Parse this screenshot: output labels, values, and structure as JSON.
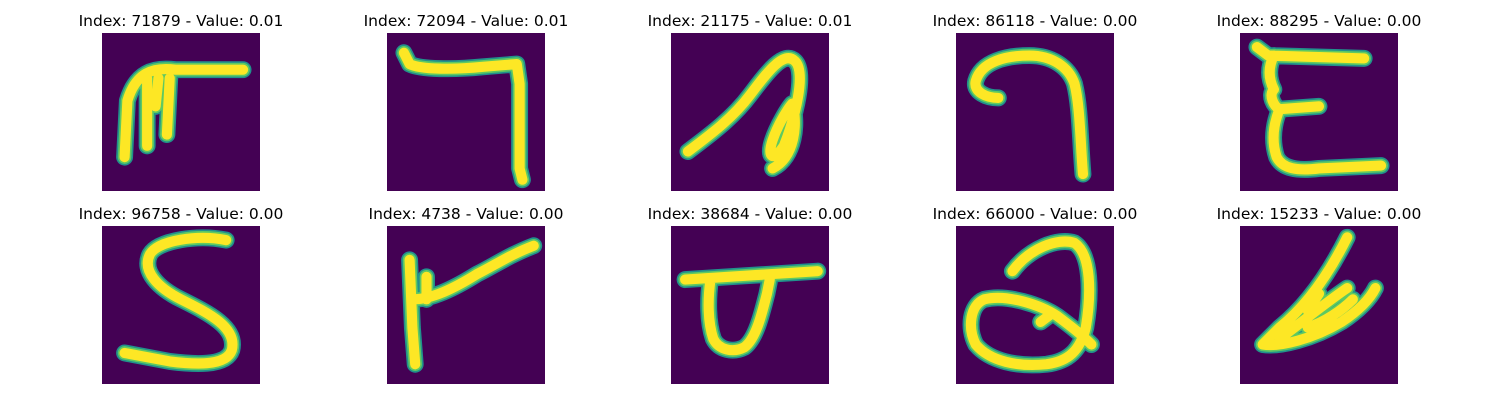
{
  "chart_data": {
    "type": "image-grid",
    "rows": 2,
    "cols": 5,
    "colors": {
      "background": "#440154",
      "stroke_edge": "#21918c",
      "stroke_mid": "#5ec962",
      "stroke_core": "#fde725"
    },
    "panels": [
      {
        "title": "Index: 71879 - Value: 0.01",
        "index": 71879,
        "value": 0.01,
        "glyph": "glyph-71879"
      },
      {
        "title": "Index: 72094 - Value: 0.01",
        "index": 72094,
        "value": 0.01,
        "glyph": "glyph-72094"
      },
      {
        "title": "Index: 21175 - Value: 0.01",
        "index": 21175,
        "value": 0.01,
        "glyph": "glyph-21175"
      },
      {
        "title": "Index: 86118 - Value: 0.00",
        "index": 86118,
        "value": 0.0,
        "glyph": "glyph-86118"
      },
      {
        "title": "Index: 88295 - Value: 0.00",
        "index": 88295,
        "value": 0.0,
        "glyph": "glyph-88295"
      },
      {
        "title": "Index: 96758 - Value: 0.00",
        "index": 96758,
        "value": 0.0,
        "glyph": "glyph-96758"
      },
      {
        "title": "Index: 4738 - Value: 0.00",
        "index": 4738,
        "value": 0.0,
        "glyph": "glyph-4738"
      },
      {
        "title": "Index: 38684 - Value: 0.00",
        "index": 38684,
        "value": 0.0,
        "glyph": "glyph-38684"
      },
      {
        "title": "Index: 66000 - Value: 0.00",
        "index": 66000,
        "value": 0.0,
        "glyph": "glyph-66000"
      },
      {
        "title": "Index: 15233 - Value: 0.00",
        "index": 15233,
        "value": 0.0,
        "glyph": "glyph-15233"
      }
    ]
  }
}
